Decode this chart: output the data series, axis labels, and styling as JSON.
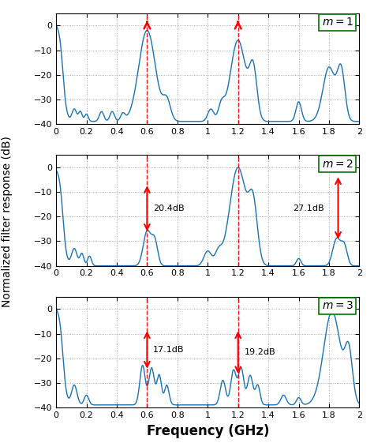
{
  "xlabel": "Frequency (GHz)",
  "ylabel": "Normalized filter response (dB)",
  "xlim": [
    0,
    2
  ],
  "ylim": [
    -40,
    5
  ],
  "yticks": [
    0,
    -10,
    -20,
    -30,
    -40
  ],
  "xticks": [
    0,
    0.2,
    0.4,
    0.6,
    0.8,
    1.0,
    1.2,
    1.4,
    1.6,
    1.8,
    2.0
  ],
  "line_color": "#1a72b8",
  "arrow_color": "red",
  "vline_x": [
    0.6,
    1.2
  ],
  "background_color": "white",
  "box_color": "#00aa00",
  "label_fontsize": 9,
  "tick_fontsize": 8,
  "axis_label_fontsize": 10,
  "panels": [
    {
      "label": "m = 1",
      "dbvals": []
    },
    {
      "label": "m = 2",
      "dbvals": []
    },
    {
      "label": "m = 3",
      "dbvals": []
    }
  ]
}
